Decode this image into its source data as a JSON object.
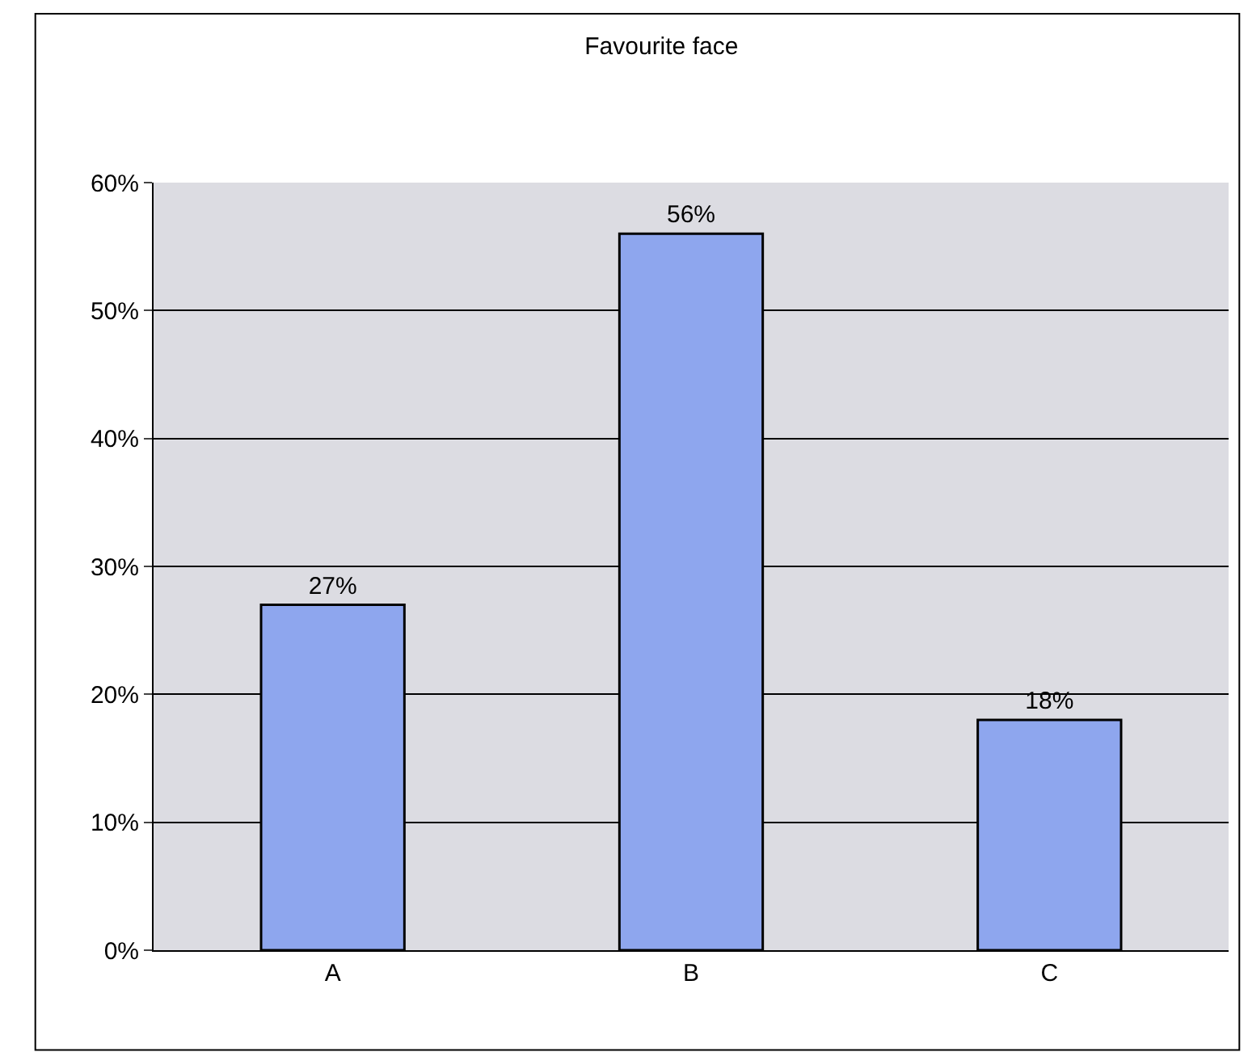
{
  "chart_data": {
    "type": "bar",
    "title": "Favourite face",
    "categories": [
      "A",
      "B",
      "C"
    ],
    "values": [
      27,
      56,
      18
    ],
    "value_labels": [
      "27%",
      "56%",
      "18%"
    ],
    "color": "#8ea6ee",
    "ylim": [
      0,
      60
    ],
    "yticks": [
      {
        "value": 0,
        "label": "0%"
      },
      {
        "value": 10,
        "label": "10%"
      },
      {
        "value": 20,
        "label": "20%"
      },
      {
        "value": 30,
        "label": "30%"
      },
      {
        "value": 40,
        "label": "40%"
      },
      {
        "value": 50,
        "label": "50%"
      },
      {
        "value": 60,
        "label": "60%"
      }
    ],
    "grid": "y",
    "legend": false
  }
}
